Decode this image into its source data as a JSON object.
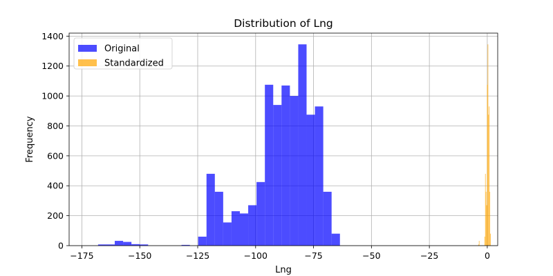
{
  "chart_data": {
    "type": "bar",
    "title": "Distribution of Lng",
    "xlabel": "Lng",
    "ylabel": "Frequency",
    "xlim": [
      -180.5,
      4.5
    ],
    "ylim": [
      0,
      1420
    ],
    "xticks": [
      -175,
      -150,
      -125,
      -100,
      -75,
      -50,
      -25,
      0
    ],
    "xtick_labels": [
      "−175",
      "−150",
      "−125",
      "−100",
      "−75",
      "−50",
      "−25",
      "0"
    ],
    "yticks": [
      0,
      200,
      400,
      600,
      800,
      1000,
      1200,
      1400
    ],
    "ytick_labels": [
      "0",
      "200",
      "400",
      "600",
      "800",
      "1000",
      "1200",
      "1400"
    ],
    "grid": true,
    "legend_position": "top-left",
    "colors": {
      "original": "#0000ff",
      "standardized": "#ffa500",
      "alpha": 0.7
    },
    "series": [
      {
        "name": "Original",
        "color": "#0000ff",
        "bin_width": 3.6,
        "bins_start": [
          -168.0,
          -164.4,
          -160.8,
          -157.2,
          -153.6,
          -150.0,
          -146.4,
          -142.8,
          -139.2,
          -135.6,
          -132.0,
          -128.4,
          -124.8,
          -121.2,
          -117.6,
          -114.0,
          -110.4,
          -106.8,
          -103.2,
          -99.6,
          -96.0,
          -92.4,
          -88.8,
          -85.2,
          -81.6,
          -78.0,
          -74.4,
          -70.8,
          -67.2
        ],
        "values": [
          8,
          8,
          32,
          25,
          10,
          8,
          0,
          0,
          0,
          0,
          5,
          0,
          60,
          480,
          360,
          155,
          230,
          215,
          270,
          425,
          1075,
          940,
          1070,
          1000,
          1345,
          875,
          930,
          360,
          80
        ]
      },
      {
        "name": "Standardized",
        "color": "#ffa500",
        "bin_width": 0.27,
        "bins_start": [
          -3.9,
          -3.63,
          -1.2,
          -0.93,
          -0.66,
          -0.39,
          -0.12,
          0.15,
          0.42,
          0.69,
          0.96,
          1.23
        ],
        "values": [
          8,
          32,
          60,
          480,
          360,
          270,
          1075,
          1345,
          875,
          930,
          360,
          80
        ]
      }
    ]
  }
}
